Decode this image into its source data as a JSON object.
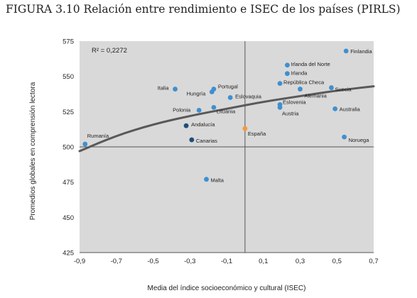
{
  "figure": {
    "title": "FIGURA 3.10  Relación entre rendimiento e ISEC de los países (PIRLS)"
  },
  "chart_data": {
    "type": "scatter",
    "xlabel": "Media del índice socioeconómico y cultural (ISEC)",
    "ylabel": "Promedios globales en comprensión lectora",
    "xlim": [
      -0.9,
      0.7
    ],
    "ylim": [
      425,
      575
    ],
    "x_ticks": [
      "-0,9",
      "-0,7",
      "-0,5",
      "-0,3",
      "-0,1",
      "0,1",
      "0,3",
      "0,5",
      "0,7"
    ],
    "x_tick_values": [
      -0.9,
      -0.7,
      -0.5,
      -0.3,
      -0.1,
      0.1,
      0.3,
      0.5,
      0.7
    ],
    "y_ticks": [
      "425",
      "450",
      "475",
      "500",
      "525",
      "550",
      "575"
    ],
    "y_tick_values": [
      425,
      450,
      475,
      500,
      525,
      550,
      575
    ],
    "annotation": "R² = 0,2272",
    "reference_lines": {
      "x": 0,
      "y": 500
    },
    "trendline": {
      "type": "logarithmic-like curve",
      "points": [
        [
          -0.9,
          497
        ],
        [
          -0.7,
          508
        ],
        [
          -0.5,
          516
        ],
        [
          -0.3,
          522
        ],
        [
          -0.1,
          527
        ],
        [
          0.1,
          532
        ],
        [
          0.3,
          536
        ],
        [
          0.5,
          540
        ],
        [
          0.7,
          543
        ]
      ]
    },
    "colors": {
      "background": "#d9d9d9",
      "country": "#3f8fcf",
      "spain_region": "#1f4e79",
      "spain": "#f39a3b",
      "trendline": "#595959"
    },
    "points": [
      {
        "name": "Finlandia",
        "x": 0.55,
        "y": 568,
        "group": "country"
      },
      {
        "name": "Irlanda del Norte",
        "x": 0.23,
        "y": 558,
        "group": "country"
      },
      {
        "name": "Irlanda",
        "x": 0.23,
        "y": 552,
        "group": "country"
      },
      {
        "name": "República Checa",
        "x": 0.19,
        "y": 545,
        "group": "country"
      },
      {
        "name": "Suecia",
        "x": 0.47,
        "y": 542,
        "group": "country"
      },
      {
        "name": "Alemania",
        "x": 0.3,
        "y": 541,
        "group": "country"
      },
      {
        "name": "Eslovenia",
        "x": 0.19,
        "y": 530,
        "group": "country"
      },
      {
        "name": "Austria",
        "x": 0.19,
        "y": 528,
        "group": "country"
      },
      {
        "name": "Australia",
        "x": 0.49,
        "y": 527,
        "group": "country"
      },
      {
        "name": "Noruega",
        "x": 0.54,
        "y": 507,
        "group": "country"
      },
      {
        "name": "Italia",
        "x": -0.38,
        "y": 541,
        "group": "country"
      },
      {
        "name": "Portugal",
        "x": -0.17,
        "y": 541,
        "group": "country"
      },
      {
        "name": "Hungría",
        "x": -0.18,
        "y": 539,
        "group": "country"
      },
      {
        "name": "Eslovaquia",
        "x": -0.08,
        "y": 535,
        "group": "country"
      },
      {
        "name": "Polonia",
        "x": -0.25,
        "y": 526,
        "group": "country"
      },
      {
        "name": "Lituania",
        "x": -0.17,
        "y": 528,
        "group": "country"
      },
      {
        "name": "Andalucía",
        "x": -0.32,
        "y": 515,
        "group": "spain_region"
      },
      {
        "name": "Canarias",
        "x": -0.29,
        "y": 505,
        "group": "spain_region"
      },
      {
        "name": "España",
        "x": 0.0,
        "y": 513,
        "group": "spain"
      },
      {
        "name": "Rumanía",
        "x": -0.87,
        "y": 502,
        "group": "country"
      },
      {
        "name": "Malta",
        "x": -0.21,
        "y": 477,
        "group": "country"
      }
    ]
  }
}
